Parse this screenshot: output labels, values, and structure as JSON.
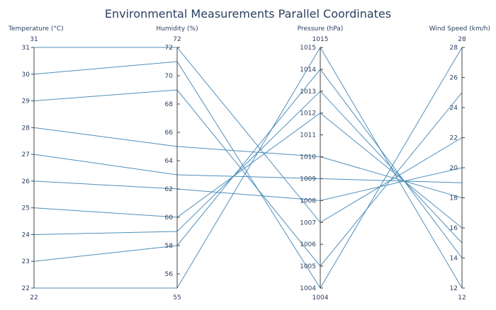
{
  "chart_data": {
    "type": "parallel_coordinates",
    "title": "Environmental Measurements Parallel Coordinates",
    "line_color": "#3c83b5",
    "dimensions": [
      {
        "label": "Temperature (°C)",
        "range": [
          22,
          31
        ],
        "range_labels": [
          "22",
          "31"
        ],
        "ticks": [
          22,
          23,
          24,
          25,
          26,
          27,
          28,
          29,
          30,
          31
        ],
        "tick_labels": [
          "22",
          "23",
          "24",
          "25",
          "26",
          "27",
          "28",
          "29",
          "30",
          "31"
        ]
      },
      {
        "label": "Humidity (%)",
        "range": [
          55,
          72
        ],
        "range_labels": [
          "55",
          "72"
        ],
        "ticks": [
          56,
          58,
          60,
          62,
          64,
          66,
          68,
          70,
          72
        ],
        "tick_labels": [
          "56",
          "58",
          "60",
          "62",
          "64",
          "66",
          "68",
          "70",
          "72"
        ]
      },
      {
        "label": "Pressure (hPa)",
        "range": [
          1004,
          1015
        ],
        "range_labels": [
          "1004",
          "1015"
        ],
        "ticks": [
          1004,
          1005,
          1006,
          1007,
          1008,
          1009,
          1010,
          1011,
          1012,
          1013,
          1014,
          1015
        ],
        "tick_labels": [
          "1004",
          "1005",
          "1006",
          "1007",
          "1008",
          "1009",
          "1010",
          "1011",
          "1012",
          "1013",
          "1014",
          "1015"
        ]
      },
      {
        "label": "Wind Speed (km/h)",
        "range": [
          12,
          28
        ],
        "range_labels": [
          "12",
          "28"
        ],
        "ticks": [
          12,
          14,
          16,
          18,
          20,
          22,
          24,
          26,
          28
        ],
        "tick_labels": [
          "12",
          "14",
          "16",
          "18",
          "20",
          "22",
          "24",
          "26",
          "28"
        ]
      }
    ],
    "records": [
      [
        22,
        55,
        1015,
        12
      ],
      [
        23,
        58,
        1014,
        14
      ],
      [
        24,
        59,
        1013,
        15
      ],
      [
        25,
        60,
        1012,
        16
      ],
      [
        26,
        62,
        1008,
        20
      ],
      [
        27,
        63,
        1009,
        19
      ],
      [
        28,
        65,
        1010,
        18
      ],
      [
        29,
        69,
        1005,
        25
      ],
      [
        30,
        71,
        1004,
        28
      ],
      [
        31,
        72,
        1007,
        22
      ]
    ]
  }
}
